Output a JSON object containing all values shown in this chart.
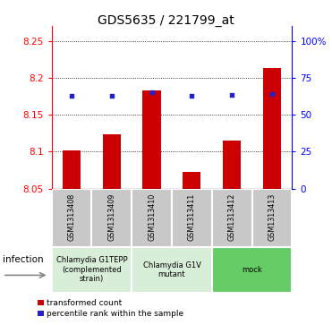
{
  "title": "GDS5635 / 221799_at",
  "samples": [
    "GSM1313408",
    "GSM1313409",
    "GSM1313410",
    "GSM1313411",
    "GSM1313412",
    "GSM1313413"
  ],
  "bar_values": [
    8.101,
    8.123,
    8.183,
    8.073,
    8.115,
    8.213
  ],
  "bar_base": 8.05,
  "percentile_values": [
    8.175,
    8.175,
    8.18,
    8.175,
    8.177,
    8.178
  ],
  "ylim_left": [
    8.05,
    8.27
  ],
  "yticks_left": [
    8.05,
    8.1,
    8.15,
    8.2,
    8.25
  ],
  "ytick_labels_left": [
    "8.05",
    "8.1",
    "8.15",
    "8.2",
    "8.25"
  ],
  "yticks_right": [
    0,
    25,
    50,
    75,
    100
  ],
  "ytick_labels_right": [
    "0",
    "25",
    "50",
    "75",
    "100%"
  ],
  "ylim_right": [
    0,
    110
  ],
  "bar_color": "#cc0000",
  "percentile_color": "#2222cc",
  "group_info": [
    {
      "span": [
        0,
        1
      ],
      "label": "Chlamydia G1TEPP\n(complemented\nstrain)",
      "color": "#d8eed8"
    },
    {
      "span": [
        2,
        3
      ],
      "label": "Chlamydia G1V\nmutant",
      "color": "#d8eed8"
    },
    {
      "span": [
        4,
        5
      ],
      "label": "mock",
      "color": "#66cc66"
    }
  ],
  "sample_box_color": "#c8c8c8",
  "infection_label": "infection",
  "legend_bar_label": "transformed count",
  "legend_perc_label": "percentile rank within the sample",
  "title_fontsize": 10,
  "tick_fontsize": 7.5,
  "sample_fontsize": 5.8,
  "group_fontsize": 6.0,
  "legend_fontsize": 6.5
}
